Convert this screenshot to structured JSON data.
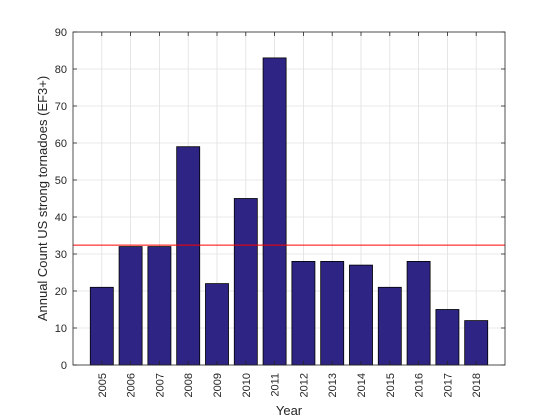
{
  "chart_data": {
    "type": "bar",
    "xlabel": "Year",
    "ylabel": "Annual Count US strong tornadoes (EF3+)",
    "categories": [
      "2005",
      "2006",
      "2007",
      "2008",
      "2009",
      "2010",
      "2011",
      "2012",
      "2013",
      "2014",
      "2015",
      "2016",
      "2017",
      "2018"
    ],
    "values": [
      21,
      32,
      32,
      59,
      22,
      45,
      83,
      28,
      28,
      27,
      21,
      28,
      15,
      12
    ],
    "ylim": [
      0,
      90
    ],
    "yticks": [
      0,
      10,
      20,
      30,
      40,
      50,
      60,
      70,
      80,
      90
    ],
    "reference_line": {
      "y": 32.4,
      "color": "#ff0000"
    },
    "bar_color": "#2e2483",
    "grid": true
  }
}
